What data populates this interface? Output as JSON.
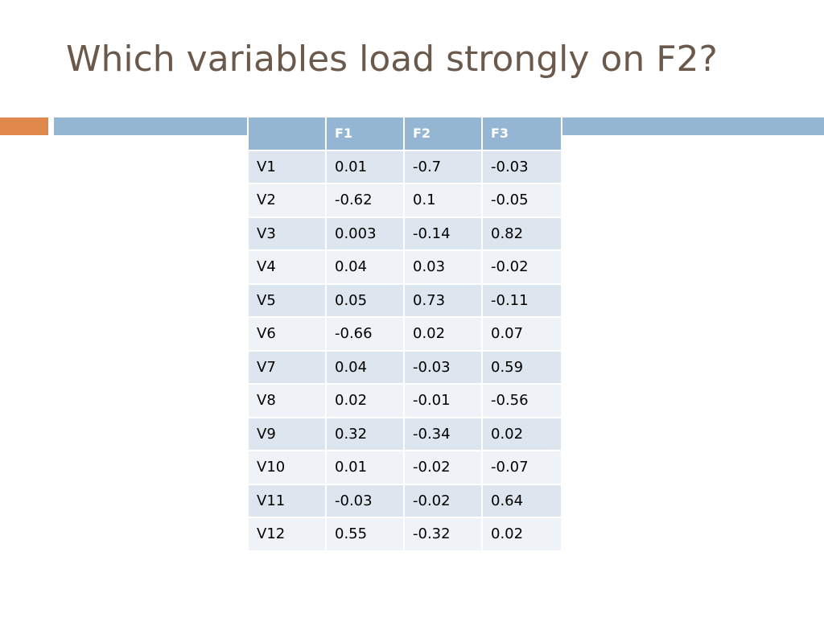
{
  "slide": {
    "title": "Which variables load strongly on F2?"
  },
  "colors": {
    "title": "#6b5a4c",
    "accent_orange": "#e0874b",
    "accent_blue": "#94b6d2",
    "row_dark": "#dde6ef",
    "row_light": "#eff3f7"
  },
  "table": {
    "headers": [
      "",
      "F1",
      "F2",
      "F3"
    ],
    "rows": [
      [
        "V1",
        "0.01",
        "-0.7",
        "-0.03"
      ],
      [
        "V2",
        "-0.62",
        "0.1",
        "-0.05"
      ],
      [
        "V3",
        "0.003",
        "-0.14",
        "0.82"
      ],
      [
        "V4",
        "0.04",
        "0.03",
        "-0.02"
      ],
      [
        "V5",
        "0.05",
        "0.73",
        "-0.11"
      ],
      [
        "V6",
        "-0.66",
        "0.02",
        "0.07"
      ],
      [
        "V7",
        "0.04",
        "-0.03",
        "0.59"
      ],
      [
        "V8",
        "0.02",
        "-0.01",
        "-0.56"
      ],
      [
        "V9",
        "0.32",
        "-0.34",
        "0.02"
      ],
      [
        "V10",
        "0.01",
        "-0.02",
        "-0.07"
      ],
      [
        "V11",
        "-0.03",
        "-0.02",
        "0.64"
      ],
      [
        "V12",
        "0.55",
        "-0.32",
        "0.02"
      ]
    ]
  }
}
